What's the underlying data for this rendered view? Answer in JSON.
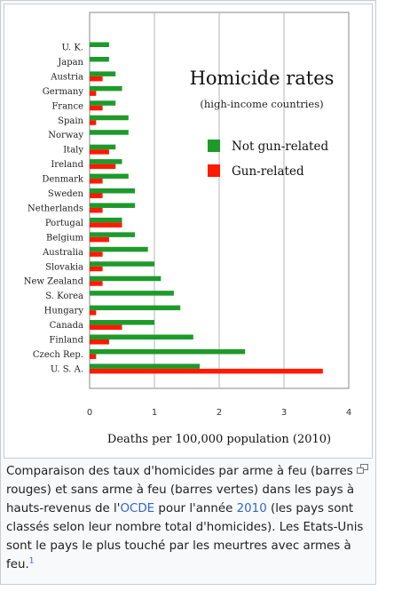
{
  "chart_data": {
    "type": "bar",
    "orientation": "horizontal",
    "title": "Homicide rates",
    "subtitle": "(high-income countries)",
    "xlabel": "Deaths per 100,000 population (2010)",
    "xlim": [
      0,
      4
    ],
    "xticks": [
      "0",
      "1",
      "2",
      "3",
      "4"
    ],
    "grid": "vertical",
    "legend_position": "top-right",
    "categories": [
      "U. K.",
      "Japan",
      "Austria",
      "Germany",
      "France",
      "Spain",
      "Norway",
      "Italy",
      "Ireland",
      "Denmark",
      "Sweden",
      "Netherlands",
      "Portugal",
      "Belgium",
      "Australia",
      "Slovakia",
      "New Zealand",
      "S. Korea",
      "Hungary",
      "Canada",
      "Finland",
      "Czech Rep.",
      "U. S. A."
    ],
    "series": [
      {
        "name": "Not gun-related",
        "color": "#1e9a2a",
        "values": [
          0.3,
          0.3,
          0.4,
          0.5,
          0.4,
          0.6,
          0.6,
          0.4,
          0.5,
          0.6,
          0.7,
          0.7,
          0.5,
          0.7,
          0.9,
          1.0,
          1.1,
          1.3,
          1.4,
          1.0,
          1.6,
          2.4,
          1.7
        ]
      },
      {
        "name": "Gun-related",
        "color": "#ff1a00",
        "values": [
          0.0,
          0.0,
          0.2,
          0.1,
          0.2,
          0.1,
          0.0,
          0.3,
          0.4,
          0.2,
          0.2,
          0.2,
          0.5,
          0.3,
          0.2,
          0.2,
          0.2,
          0.0,
          0.1,
          0.5,
          0.3,
          0.1,
          3.6
        ]
      }
    ]
  },
  "caption": {
    "part1": "Comparaison des taux d'homicides par arme à feu (barres rouges) et sans arme à feu (barres vertes) dans les pays à hauts-revenus de l'",
    "link_ocde": "OCDE",
    "part2": " pour l'année ",
    "link_year": "2010",
    "part3": " (les pays sont classés selon leur nombre total d'homicides). Les Etats-Unis sont le pays le plus touché par les meurtres avec armes à feu.",
    "footnote": "1"
  },
  "icons": {
    "magnify": "magnify-icon"
  }
}
